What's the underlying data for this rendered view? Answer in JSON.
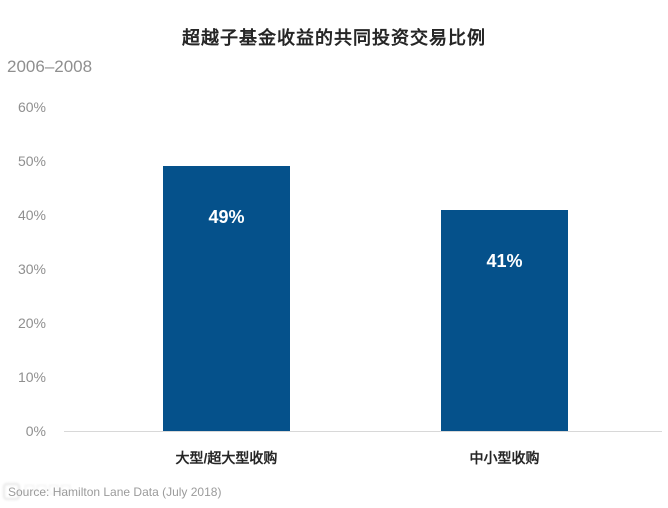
{
  "title": "超越子基金收益的共同投资交易比例",
  "subtitle": "2006–2008",
  "source": "Source: Hamilton Lane Data (July 2018)",
  "colors": {
    "bar": "#05518b",
    "title_text": "#262626",
    "muted_text": "#8f8f8f",
    "axis_line": "#d8d8d8",
    "bar_label": "#ffffff",
    "background": "#ffffff"
  },
  "chart_data": {
    "type": "bar",
    "title": "超越子基金收益的共同投资交易比例",
    "subtitle": "2006–2008",
    "categories": [
      "大型/超大型收购",
      "中小型收购"
    ],
    "values": [
      49,
      41
    ],
    "value_labels": [
      "49%",
      "41%"
    ],
    "xlabel": "",
    "ylabel": "",
    "ylim": [
      0,
      60
    ],
    "yticks": [
      "0%",
      "10%",
      "20%",
      "30%",
      "40%",
      "50%",
      "60%"
    ],
    "grid": false,
    "legend": null,
    "source_note": "Source: Hamilton Lane Data (July 2018)"
  }
}
